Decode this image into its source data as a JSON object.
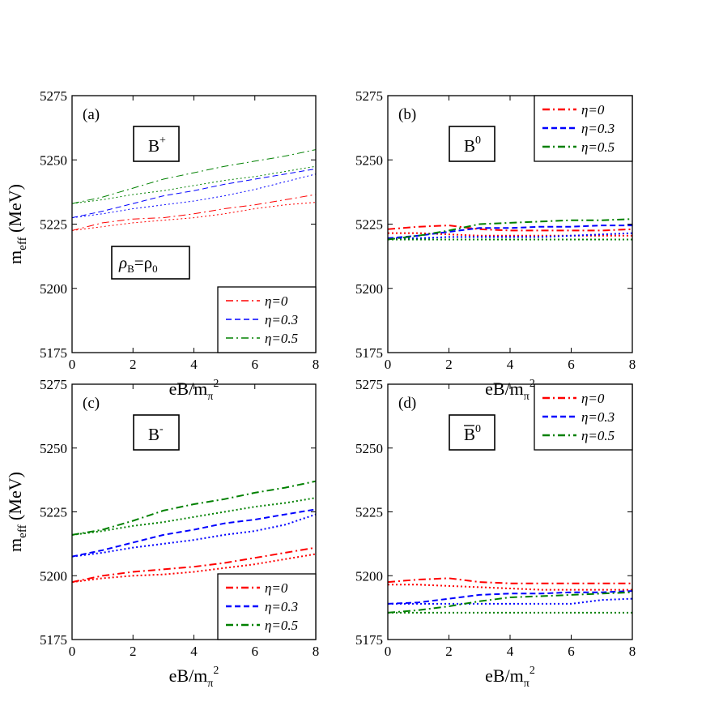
{
  "chart_data": [
    {
      "type": "line",
      "panel_label": "(a)",
      "particle_label": "B",
      "particle_superscript": "+",
      "overline": false,
      "density_label": {
        "rho": "ρ",
        "sub": "B",
        "eq": "=ρ",
        "sub2": "0"
      },
      "xlabel": "eB/m",
      "xlabel_sub": "π",
      "xlabel_sup": "2",
      "ylabel": "m",
      "ylabel_sub": "eff",
      "ylabel_unit": " (MeV)",
      "xlim": [
        0,
        8
      ],
      "ylim": [
        5175,
        5275
      ],
      "xticks": [
        0,
        2,
        4,
        6,
        8
      ],
      "yticks": [
        5175,
        5200,
        5225,
        5250,
        5275
      ],
      "legend": {
        "position": "bottom-right"
      },
      "line_width": 1,
      "series": [
        {
          "name": "η=0",
          "color": "#ff0000",
          "style": "dashdot",
          "legend": true,
          "x": [
            0,
            1,
            2,
            3,
            4,
            5,
            6,
            7,
            8
          ],
          "y": [
            5222.5,
            5225.5,
            5227,
            5227.5,
            5229,
            5231,
            5232.5,
            5234.5,
            5236.5
          ]
        },
        {
          "name": "",
          "color": "#ff0000",
          "style": "dotted",
          "legend": false,
          "x": [
            0,
            1,
            2,
            3,
            4,
            5,
            6,
            7,
            8
          ],
          "y": [
            5222.5,
            5224,
            5225.5,
            5226.5,
            5227.5,
            5229,
            5231,
            5232.5,
            5233.5
          ]
        },
        {
          "name": "η=0.3",
          "color": "#0000ff",
          "style": "dashed",
          "legend": true,
          "x": [
            0,
            1,
            2,
            3,
            4,
            5,
            6,
            7,
            8
          ],
          "y": [
            5227.5,
            5230,
            5233,
            5236,
            5238,
            5240.5,
            5242.5,
            5244.5,
            5246.5
          ]
        },
        {
          "name": "",
          "color": "#0000ff",
          "style": "dotted",
          "legend": false,
          "x": [
            0,
            1,
            2,
            3,
            4,
            5,
            6,
            7,
            8
          ],
          "y": [
            5227.5,
            5229,
            5231,
            5232.5,
            5234,
            5236,
            5238.5,
            5241.5,
            5244.5
          ]
        },
        {
          "name": "η=0.5",
          "color": "#008000",
          "style": "dashdot",
          "legend": true,
          "x": [
            0,
            1,
            2,
            3,
            4,
            5,
            6,
            7,
            8
          ],
          "y": [
            5233,
            5235.5,
            5239,
            5242.5,
            5245,
            5247.5,
            5249.5,
            5251.5,
            5254
          ]
        },
        {
          "name": "",
          "color": "#008000",
          "style": "dotted",
          "legend": false,
          "x": [
            0,
            1,
            2,
            3,
            4,
            5,
            6,
            7,
            8
          ],
          "y": [
            5233,
            5234.5,
            5236.5,
            5238,
            5240,
            5242,
            5243.5,
            5245.5,
            5247.5
          ]
        }
      ]
    },
    {
      "type": "line",
      "panel_label": "(b)",
      "particle_label": "B",
      "particle_superscript": "0",
      "overline": false,
      "xlabel": "eB/m",
      "xlabel_sub": "π",
      "xlabel_sup": "2",
      "ylabel": "",
      "xlim": [
        0,
        8
      ],
      "ylim": [
        5175,
        5275
      ],
      "xticks": [
        0,
        2,
        4,
        6,
        8
      ],
      "yticks": [
        5175,
        5200,
        5225,
        5250,
        5275
      ],
      "legend": {
        "position": "top-right"
      },
      "line_width": 2,
      "series": [
        {
          "name": "η=0",
          "color": "#ff0000",
          "style": "dashdot",
          "legend": true,
          "x": [
            0,
            1,
            2,
            3,
            4,
            5,
            6,
            7,
            8
          ],
          "y": [
            5223,
            5224,
            5224.5,
            5223,
            5222.5,
            5222.5,
            5222.5,
            5222.5,
            5223
          ]
        },
        {
          "name": "",
          "color": "#ff0000",
          "style": "dotted",
          "legend": false,
          "x": [
            0,
            1,
            2,
            3,
            4,
            5,
            6,
            7,
            8
          ],
          "y": [
            5221.5,
            5221.5,
            5221,
            5220.5,
            5220.5,
            5220.5,
            5220.5,
            5220.5,
            5220.5
          ]
        },
        {
          "name": "η=0.3",
          "color": "#0000ff",
          "style": "dashed",
          "legend": true,
          "x": [
            0,
            1,
            2,
            3,
            4,
            5,
            6,
            7,
            8
          ],
          "y": [
            5219.5,
            5220.5,
            5222,
            5223.5,
            5223.5,
            5224,
            5224,
            5224.5,
            5224.5
          ]
        },
        {
          "name": "",
          "color": "#0000ff",
          "style": "dotted",
          "legend": false,
          "x": [
            0,
            1,
            2,
            3,
            4,
            5,
            6,
            7,
            8
          ],
          "y": [
            5219.5,
            5219.5,
            5220,
            5220,
            5220,
            5220,
            5220.5,
            5221,
            5221.5
          ]
        },
        {
          "name": "η=0.5",
          "color": "#008000",
          "style": "dashdot",
          "legend": true,
          "x": [
            0,
            1,
            2,
            3,
            4,
            5,
            6,
            7,
            8
          ],
          "y": [
            5219,
            5220.5,
            5222.5,
            5225,
            5225.5,
            5226,
            5226.5,
            5226.5,
            5227
          ]
        },
        {
          "name": "",
          "color": "#008000",
          "style": "dotted",
          "legend": false,
          "x": [
            0,
            1,
            2,
            3,
            4,
            5,
            6,
            7,
            8
          ],
          "y": [
            5219,
            5219,
            5219,
            5219,
            5219,
            5219,
            5219,
            5219,
            5219
          ]
        }
      ]
    },
    {
      "type": "line",
      "panel_label": "(c)",
      "particle_label": "B",
      "particle_superscript": "-",
      "overline": false,
      "xlabel": "eB/m",
      "xlabel_sub": "π",
      "xlabel_sup": "2",
      "ylabel": "m",
      "ylabel_sub": "eff",
      "ylabel_unit": " (MeV)",
      "xlim": [
        0,
        8
      ],
      "ylim": [
        5175,
        5275
      ],
      "xticks": [
        0,
        2,
        4,
        6,
        8
      ],
      "yticks": [
        5175,
        5200,
        5225,
        5250,
        5275
      ],
      "legend": {
        "position": "bottom-right"
      },
      "line_width": 2,
      "series": [
        {
          "name": "η=0",
          "color": "#ff0000",
          "style": "dashdot",
          "legend": true,
          "x": [
            0,
            1,
            2,
            3,
            4,
            5,
            6,
            7,
            8
          ],
          "y": [
            5197.5,
            5200,
            5201.5,
            5202.5,
            5203.5,
            5205,
            5207,
            5209,
            5211
          ]
        },
        {
          "name": "",
          "color": "#ff0000",
          "style": "dotted",
          "legend": false,
          "x": [
            0,
            1,
            2,
            3,
            4,
            5,
            6,
            7,
            8
          ],
          "y": [
            5197.5,
            5199,
            5200,
            5200.5,
            5201.5,
            5203,
            5204.5,
            5206.5,
            5208.5
          ]
        },
        {
          "name": "η=0.3",
          "color": "#0000ff",
          "style": "dashed",
          "legend": true,
          "x": [
            0,
            1,
            2,
            3,
            4,
            5,
            6,
            7,
            8
          ],
          "y": [
            5207.5,
            5210,
            5213,
            5216,
            5218,
            5220.5,
            5222,
            5224,
            5226
          ]
        },
        {
          "name": "",
          "color": "#0000ff",
          "style": "dotted",
          "legend": false,
          "x": [
            0,
            1,
            2,
            3,
            4,
            5,
            6,
            7,
            8
          ],
          "y": [
            5207.5,
            5209,
            5211,
            5212.5,
            5214,
            5216,
            5217.5,
            5220,
            5224
          ]
        },
        {
          "name": "η=0.5",
          "color": "#008000",
          "style": "dashdot",
          "legend": true,
          "x": [
            0,
            1,
            2,
            3,
            4,
            5,
            6,
            7,
            8
          ],
          "y": [
            5216,
            5218,
            5221.5,
            5225.5,
            5228,
            5230,
            5232.5,
            5234.5,
            5237
          ]
        },
        {
          "name": "",
          "color": "#008000",
          "style": "dotted",
          "legend": false,
          "x": [
            0,
            1,
            2,
            3,
            4,
            5,
            6,
            7,
            8
          ],
          "y": [
            5216,
            5217.5,
            5219.5,
            5221,
            5223,
            5225,
            5227,
            5228.5,
            5230.5
          ]
        }
      ]
    },
    {
      "type": "line",
      "panel_label": "(d)",
      "particle_label": "B",
      "particle_superscript": "0",
      "overline": true,
      "xlabel": "eB/m",
      "xlabel_sub": "π",
      "xlabel_sup": "2",
      "ylabel": "",
      "xlim": [
        0,
        8
      ],
      "ylim": [
        5175,
        5275
      ],
      "xticks": [
        0,
        2,
        4,
        6,
        8
      ],
      "yticks": [
        5175,
        5200,
        5225,
        5250,
        5275
      ],
      "legend": {
        "position": "top-right"
      },
      "line_width": 2,
      "series": [
        {
          "name": "η=0",
          "color": "#ff0000",
          "style": "dashdot",
          "legend": true,
          "x": [
            0,
            1,
            2,
            3,
            4,
            5,
            6,
            7,
            8
          ],
          "y": [
            5197.5,
            5198.5,
            5199,
            5197.5,
            5197,
            5197,
            5197,
            5197,
            5197
          ]
        },
        {
          "name": "",
          "color": "#ff0000",
          "style": "dotted",
          "legend": false,
          "x": [
            0,
            1,
            2,
            3,
            4,
            5,
            6,
            7,
            8
          ],
          "y": [
            5196.5,
            5196.5,
            5196,
            5195.5,
            5195,
            5194.5,
            5194.5,
            5194.5,
            5194.5
          ]
        },
        {
          "name": "η=0.3",
          "color": "#0000ff",
          "style": "dashed",
          "legend": true,
          "x": [
            0,
            1,
            2,
            3,
            4,
            5,
            6,
            7,
            8
          ],
          "y": [
            5189,
            5189.5,
            5191,
            5192.5,
            5193,
            5193,
            5193.5,
            5193.5,
            5194
          ]
        },
        {
          "name": "",
          "color": "#0000ff",
          "style": "dotted",
          "legend": false,
          "x": [
            0,
            1,
            2,
            3,
            4,
            5,
            6,
            7,
            8
          ],
          "y": [
            5189,
            5189,
            5189,
            5189,
            5189,
            5189,
            5189,
            5190.5,
            5191
          ]
        },
        {
          "name": "η=0.5",
          "color": "#008000",
          "style": "dashdot",
          "legend": true,
          "x": [
            0,
            1,
            2,
            3,
            4,
            5,
            6,
            7,
            8
          ],
          "y": [
            5185.5,
            5186.5,
            5188,
            5190,
            5191.5,
            5192,
            5192.5,
            5193,
            5193.5
          ]
        },
        {
          "name": "",
          "color": "#008000",
          "style": "dotted",
          "legend": false,
          "x": [
            0,
            1,
            2,
            3,
            4,
            5,
            6,
            7,
            8
          ],
          "y": [
            5185.5,
            5185.5,
            5185.5,
            5185.5,
            5185.5,
            5185.5,
            5185.5,
            5185.5,
            5185.5
          ]
        }
      ]
    }
  ]
}
